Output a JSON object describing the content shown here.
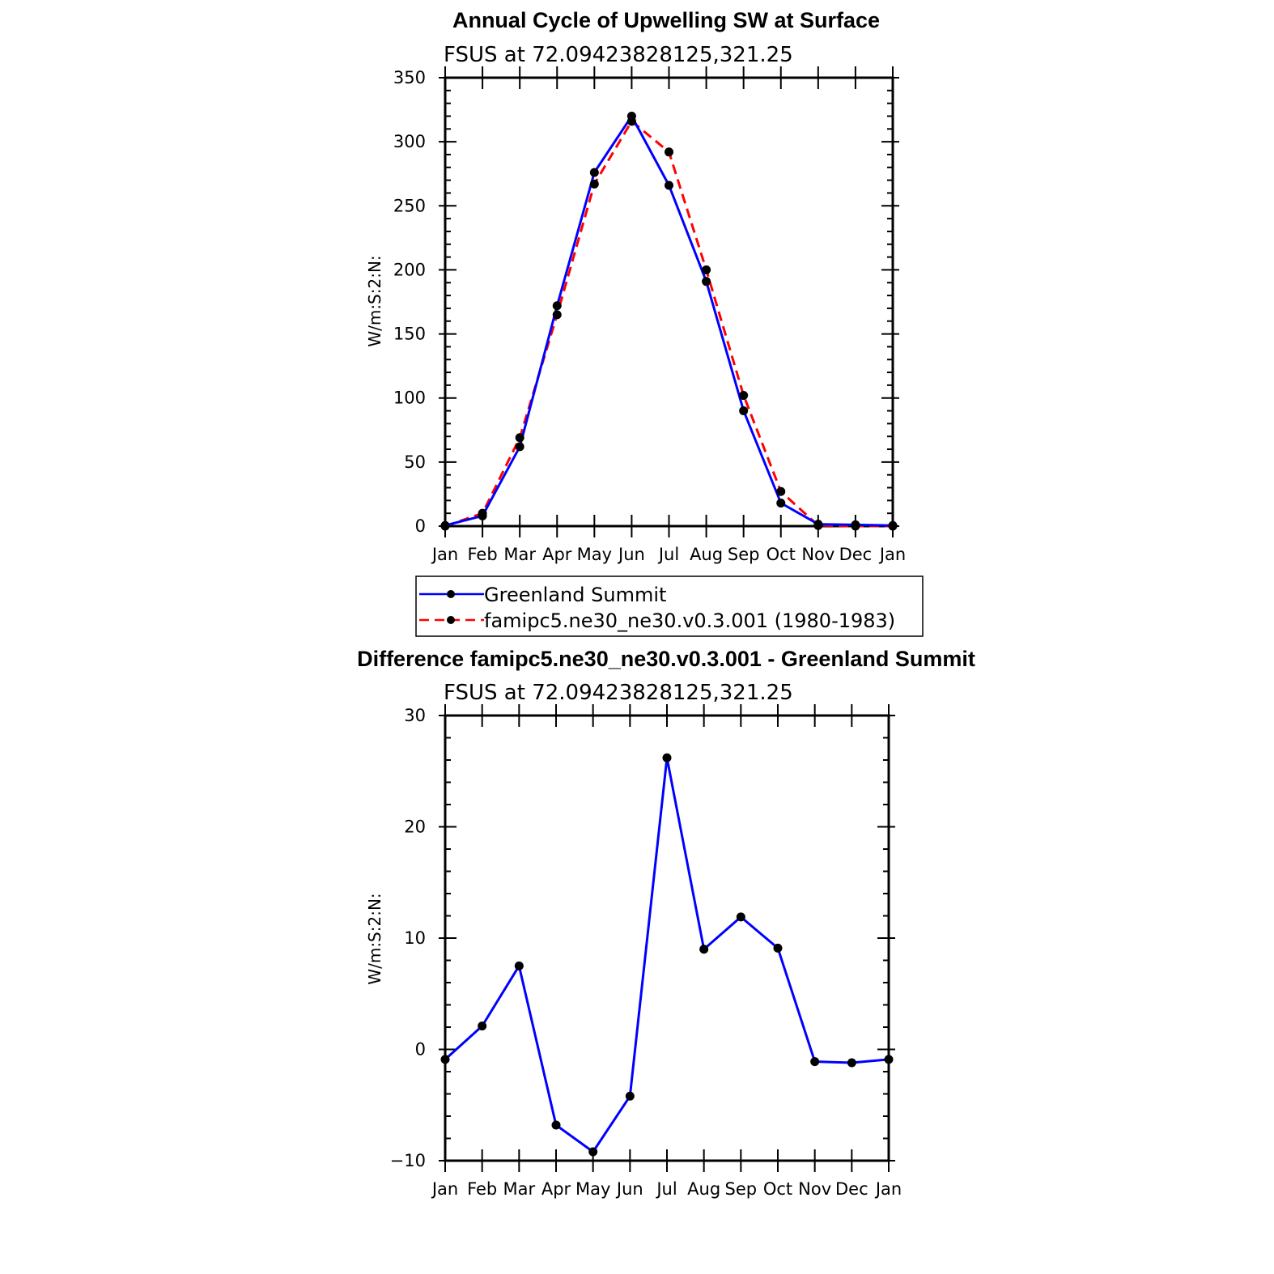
{
  "chart_data": [
    {
      "type": "line",
      "title": "Annual Cycle of Upwelling SW at Surface",
      "subtitle": "FSUS at 72.09423828125,321.25",
      "ylabel": "W/m:S:2:N:",
      "xlabel": "",
      "categories": [
        "Jan",
        "Feb",
        "Mar",
        "Apr",
        "May",
        "Jun",
        "Jul",
        "Aug",
        "Sep",
        "Oct",
        "Nov",
        "Dec",
        "Jan"
      ],
      "ylim": [
        0,
        350
      ],
      "yticks": [
        "0",
        "50",
        "100",
        "150",
        "200",
        "250",
        "300",
        "350"
      ],
      "series": [
        {
          "name": "Greenland Summit",
          "color": "#0000ff",
          "dash": "solid",
          "values": [
            0.5,
            8,
            62,
            172,
            276,
            320,
            266,
            191,
            90,
            18,
            1.5,
            1,
            0.5
          ]
        },
        {
          "name": "famipc5.ne30_ne30.v0.3.001 (1980-1983)",
          "color": "#ff0000",
          "dash": "dashed",
          "values": [
            0,
            10,
            69,
            165,
            267,
            316,
            292,
            200,
            102,
            27,
            0.5,
            0,
            0
          ]
        }
      ],
      "legend_placement": "below"
    },
    {
      "type": "line",
      "title": "Difference famipc5.ne30_ne30.v0.3.001 - Greenland Summit",
      "subtitle": "FSUS at 72.09423828125,321.25",
      "ylabel": "W/m:S:2:N:",
      "xlabel": "",
      "categories": [
        "Jan",
        "Feb",
        "Mar",
        "Apr",
        "May",
        "Jun",
        "Jul",
        "Aug",
        "Sep",
        "Oct",
        "Nov",
        "Dec",
        "Jan"
      ],
      "ylim": [
        -10,
        30
      ],
      "yticks": [
        "−10",
        "0",
        "10",
        "20",
        "30"
      ],
      "series": [
        {
          "color": "#0000ff",
          "dash": "solid",
          "values": [
            -0.9,
            2.1,
            7.5,
            -6.8,
            -9.2,
            -4.2,
            26.2,
            9.0,
            11.9,
            9.1,
            -1.1,
            -1.2,
            -0.9
          ]
        }
      ]
    }
  ]
}
